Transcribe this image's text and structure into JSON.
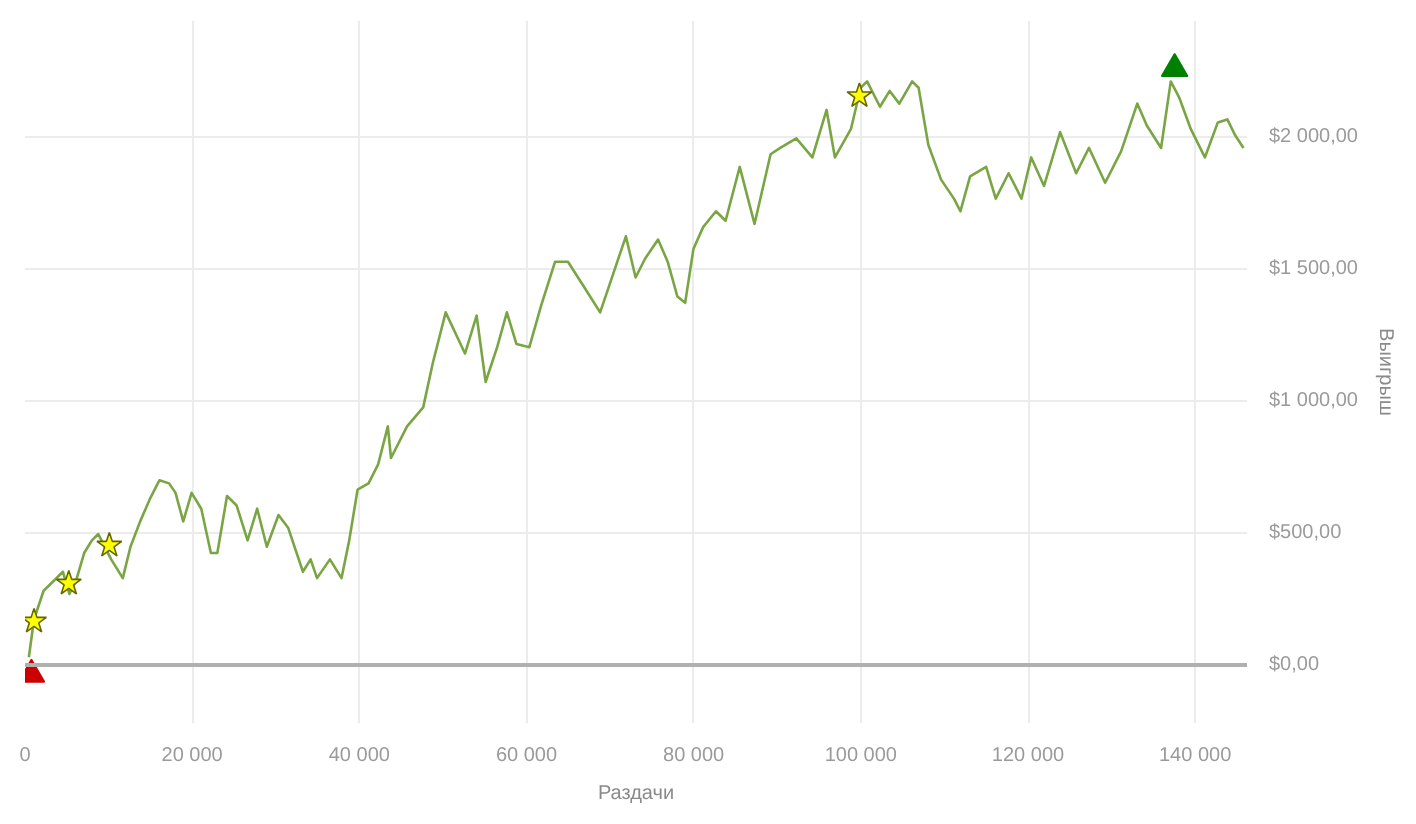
{
  "chart_data": {
    "type": "line",
    "xlabel": "Раздачи",
    "ylabel": "Выигрыш",
    "xlim": [
      0,
      146200
    ],
    "ylim": [
      -220,
      2440
    ],
    "xticks": [
      {
        "value": 0,
        "label": "0"
      },
      {
        "value": 20000,
        "label": "20 000"
      },
      {
        "value": 40000,
        "label": "40 000"
      },
      {
        "value": 60000,
        "label": "60 000"
      },
      {
        "value": 80000,
        "label": "80 000"
      },
      {
        "value": 100000,
        "label": "100 000"
      },
      {
        "value": 120000,
        "label": "120 000"
      },
      {
        "value": 140000,
        "label": "140 000"
      }
    ],
    "yticks": [
      {
        "value": 0,
        "label": "$0,00"
      },
      {
        "value": 500,
        "label": "$500,00"
      },
      {
        "value": 1000,
        "label": "$1 000,00"
      },
      {
        "value": 1500,
        "label": "$1 500,00"
      },
      {
        "value": 2000,
        "label": "$2 000,00"
      }
    ],
    "grid": true,
    "ref_lines": [
      {
        "axis": "y",
        "value": 0,
        "color": "#b0b0b0"
      }
    ],
    "series": [
      {
        "color": "#7aa544",
        "marker": "none",
        "x": [
          460,
          1080,
          2230,
          3390,
          4540,
          5310,
          6080,
          7080,
          8000,
          8770,
          10310,
          11700,
          12620,
          13780,
          14930,
          16090,
          17240,
          18010,
          18930,
          19930,
          21090,
          22240,
          23010,
          24170,
          25320,
          26630,
          27780,
          28930,
          30330,
          31480,
          33250,
          34170,
          34940,
          36480,
          37870,
          38790,
          39790,
          41100,
          42250,
          43410,
          43790,
          45710,
          47640,
          48790,
          50330,
          52640,
          54030,
          55110,
          56490,
          57650,
          58800,
          60340,
          61730,
          63420,
          64960,
          66890,
          68810,
          70350,
          71890,
          73050,
          74200,
          75740,
          76890,
          78050,
          78980,
          79970,
          81130,
          82670,
          83820,
          85510,
          87280,
          89200,
          90360,
          92280,
          94200,
          95900,
          96900,
          98820,
          99980,
          100750,
          102290,
          103450,
          104600,
          106140,
          106910,
          108070,
          109600,
          111140,
          111910,
          113070,
          114990,
          116140,
          117680,
          119220,
          120380,
          121920,
          123840,
          125760,
          127300,
          129230,
          131150,
          133070,
          134230,
          135920,
          137080,
          138080,
          139470,
          141160,
          142700,
          143850,
          144780,
          145780
        ],
        "values": [
          29,
          173,
          281,
          317,
          353,
          269,
          317,
          424,
          472,
          496,
          400,
          329,
          448,
          544,
          628,
          700,
          688,
          652,
          544,
          652,
          592,
          424,
          424,
          640,
          604,
          472,
          592,
          448,
          568,
          520,
          353,
          400,
          329,
          400,
          329,
          472,
          664,
          688,
          760,
          904,
          784,
          904,
          976,
          1144,
          1336,
          1180,
          1324,
          1072,
          1204,
          1336,
          1216,
          1204,
          1360,
          1528,
          1528,
          1432,
          1336,
          1480,
          1624,
          1468,
          1540,
          1612,
          1528,
          1396,
          1372,
          1576,
          1659,
          1719,
          1683,
          1887,
          1671,
          1935,
          1959,
          1995,
          1923,
          2103,
          1923,
          2031,
          2187,
          2211,
          2115,
          2175,
          2127,
          2211,
          2187,
          1971,
          1839,
          1767,
          1719,
          1851,
          1887,
          1767,
          1863,
          1767,
          1923,
          1815,
          2019,
          1863,
          1959,
          1827,
          1947,
          2127,
          2043,
          1959,
          2211,
          2151,
          2031,
          1923,
          2055,
          2067,
          2007,
          1959
        ]
      },
      {
        "type": "scatter",
        "color": "#ffff00",
        "marker": "star",
        "x": [
          1080,
          5240,
          10090,
          99830
        ],
        "values": [
          165,
          309,
          453,
          2156
        ]
      },
      {
        "type": "scatter",
        "color": "#008000",
        "marker": "triangle",
        "x": [
          137540
        ],
        "values": [
          2259
        ]
      },
      {
        "type": "scatter",
        "color": "#cc0000",
        "marker": "triangle",
        "x": [
          770
        ],
        "values": [
          -36
        ]
      }
    ]
  }
}
